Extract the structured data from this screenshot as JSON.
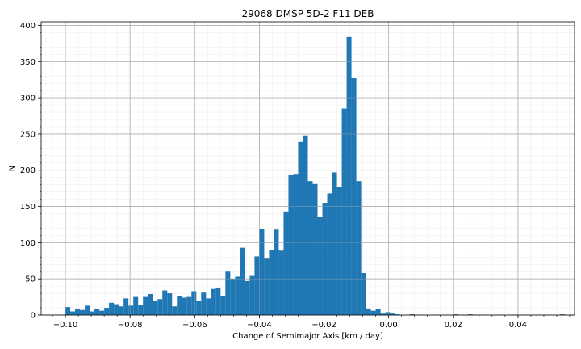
{
  "chart_data": {
    "type": "bar",
    "title": "29068 DMSP 5D-2 F11 DEB",
    "xlabel": "Change of Semimajor Axis [km / day]",
    "ylabel": "N",
    "xlim": [
      -0.1075,
      0.0575
    ],
    "ylim": [
      0,
      405
    ],
    "xticks": [
      -0.1,
      -0.08,
      -0.06,
      -0.04,
      -0.02,
      0.0,
      0.02,
      0.04
    ],
    "xtick_labels": [
      "−0.10",
      "−0.08",
      "−0.06",
      "−0.04",
      "−0.02",
      "0.00",
      "0.02",
      "0.04"
    ],
    "yticks": [
      0,
      50,
      100,
      150,
      200,
      250,
      300,
      350,
      400
    ],
    "ytick_labels": [
      "0",
      "50",
      "100",
      "150",
      "200",
      "250",
      "300",
      "350",
      "400"
    ],
    "grid": true,
    "minor_grid": true,
    "bar_color": "#1f77b4",
    "bin_start": -0.1,
    "bin_width": 0.0015,
    "values": [
      11,
      5,
      8,
      7,
      13,
      5,
      8,
      6,
      10,
      17,
      15,
      12,
      23,
      13,
      25,
      14,
      25,
      29,
      19,
      22,
      34,
      30,
      12,
      26,
      24,
      25,
      33,
      19,
      31,
      23,
      36,
      38,
      26,
      60,
      50,
      53,
      93,
      47,
      54,
      81,
      119,
      79,
      90,
      118,
      89,
      143,
      193,
      195,
      239,
      248,
      185,
      181,
      136,
      155,
      168,
      197,
      177,
      285,
      384,
      327,
      185,
      58,
      9,
      6,
      8,
      2,
      4,
      2,
      1,
      0,
      0,
      1,
      0,
      0,
      0,
      0,
      0,
      0,
      0,
      0,
      1,
      0,
      0,
      1,
      0,
      0,
      0,
      0,
      0,
      0,
      0,
      0,
      0,
      0,
      0,
      0,
      0,
      0,
      0,
      0,
      0,
      0,
      1
    ]
  }
}
